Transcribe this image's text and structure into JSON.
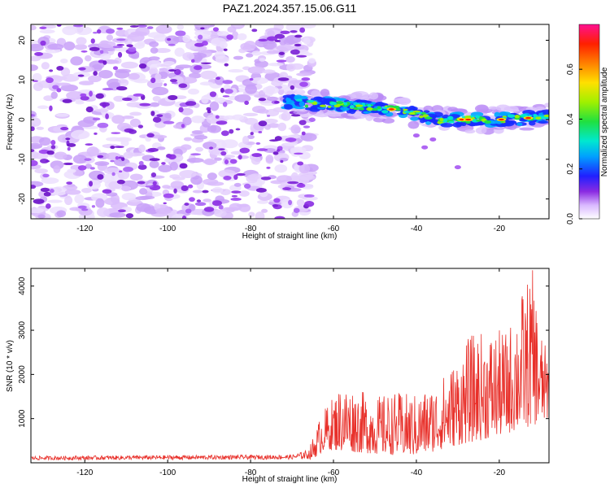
{
  "title": "PAZ1.2024.357.15.06.G11",
  "chart_data": [
    {
      "type": "heatmap",
      "xlabel": "Height of straight line (km)",
      "ylabel": "Frequency (Hz)",
      "xlim": [
        -133,
        -8
      ],
      "ylim": [
        -25,
        24
      ],
      "x_ticks": [
        -120,
        -100,
        -80,
        -60,
        -40,
        -20
      ],
      "x_tick_labels": [
        "-120",
        "-100",
        "-80",
        "-60",
        "-40",
        "-20"
      ],
      "y_ticks": [
        -20,
        -10,
        0,
        10,
        20
      ],
      "y_tick_labels": [
        "-20",
        "-10",
        "0",
        "10",
        "20"
      ],
      "noise_region_x": [
        -133,
        -65
      ],
      "signal_ridge": [
        {
          "x": -72,
          "y": 4.5
        },
        {
          "x": -65,
          "y": 4.0
        },
        {
          "x": -60,
          "y": 3.8
        },
        {
          "x": -55,
          "y": 3.5
        },
        {
          "x": -50,
          "y": 3.0
        },
        {
          "x": -45,
          "y": 2.5
        },
        {
          "x": -40,
          "y": 1.5
        },
        {
          "x": -35,
          "y": 0.0
        },
        {
          "x": -30,
          "y": 0.0
        },
        {
          "x": -25,
          "y": 0.0
        },
        {
          "x": -20,
          "y": 0.0
        },
        {
          "x": -15,
          "y": 0.3
        },
        {
          "x": -8,
          "y": 0.8
        }
      ],
      "colorbar": {
        "label": "Normalized spectral amplitude",
        "ticks": [
          0.0,
          0.2,
          0.4,
          0.6
        ],
        "tick_labels": [
          "0.0",
          "0.2",
          "0.4",
          "0.6"
        ],
        "range": [
          0,
          0.78
        ]
      }
    },
    {
      "type": "line",
      "xlabel": "Height of straight line (km)",
      "ylabel": "SNR (10 * v/v)",
      "xlim": [
        -133,
        -8
      ],
      "ylim": [
        0,
        4400
      ],
      "x_ticks": [
        -120,
        -100,
        -80,
        -60,
        -40,
        -20
      ],
      "x_tick_labels": [
        "-120",
        "-100",
        "-80",
        "-60",
        "-40",
        "-20"
      ],
      "y_ticks": [
        1000,
        2000,
        3000,
        4000
      ],
      "y_tick_labels": [
        "1000",
        "2000",
        "3000",
        "4000"
      ],
      "line_color": "#e8302a",
      "envelope": [
        {
          "x": -133,
          "y": 150
        },
        {
          "x": -100,
          "y": 170
        },
        {
          "x": -70,
          "y": 180
        },
        {
          "x": -66,
          "y": 300
        },
        {
          "x": -63,
          "y": 1100
        },
        {
          "x": -58,
          "y": 1800
        },
        {
          "x": -55,
          "y": 1700
        },
        {
          "x": -50,
          "y": 1500
        },
        {
          "x": -45,
          "y": 1600
        },
        {
          "x": -40,
          "y": 1550
        },
        {
          "x": -35,
          "y": 1800
        },
        {
          "x": -30,
          "y": 2400
        },
        {
          "x": -27,
          "y": 2900
        },
        {
          "x": -23,
          "y": 3000
        },
        {
          "x": -18,
          "y": 3000
        },
        {
          "x": -15,
          "y": 3800
        },
        {
          "x": -12,
          "y": 4400
        },
        {
          "x": -10,
          "y": 3000
        },
        {
          "x": -8,
          "y": 2400
        }
      ],
      "baseline": [
        {
          "x": -133,
          "y": 60
        },
        {
          "x": -65,
          "y": 80
        },
        {
          "x": -62,
          "y": 300
        },
        {
          "x": -50,
          "y": 200
        },
        {
          "x": -40,
          "y": 150
        },
        {
          "x": -30,
          "y": 400
        },
        {
          "x": -20,
          "y": 600
        },
        {
          "x": -10,
          "y": 900
        },
        {
          "x": -8,
          "y": 1000
        }
      ]
    }
  ]
}
